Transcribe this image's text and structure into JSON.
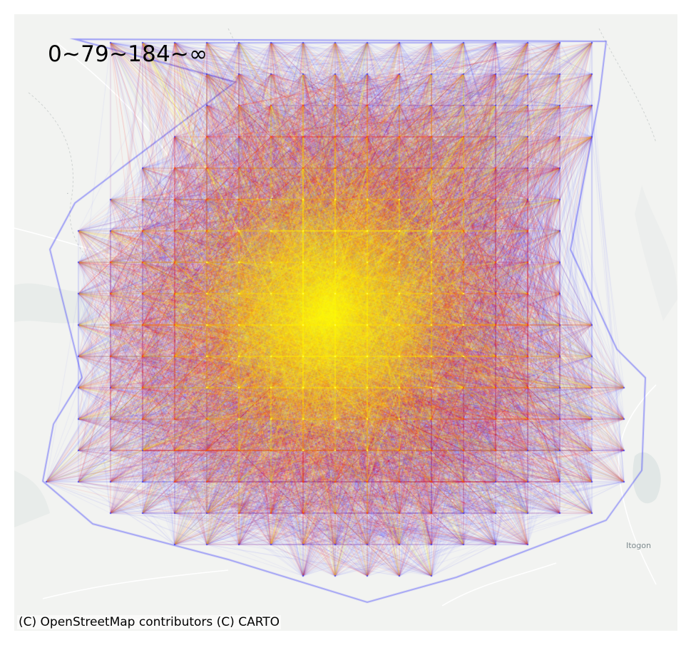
{
  "map": {
    "legend_label": "0~79~184~∞",
    "attribution": "(C) OpenStreetMap contributors (C) CARTO",
    "places": [
      {
        "name": "Itogon"
      }
    ],
    "color_scale": {
      "breaks": [
        "0",
        "79",
        "184",
        "∞"
      ],
      "colors": [
        "#0000ff",
        "#ff0000",
        "#ffff00"
      ]
    },
    "basemap_colors": {
      "land": "#f2f3f1",
      "water": "#e1e7e6",
      "roads": "#ffffff",
      "boundaries": "#cfd3d2"
    }
  }
}
